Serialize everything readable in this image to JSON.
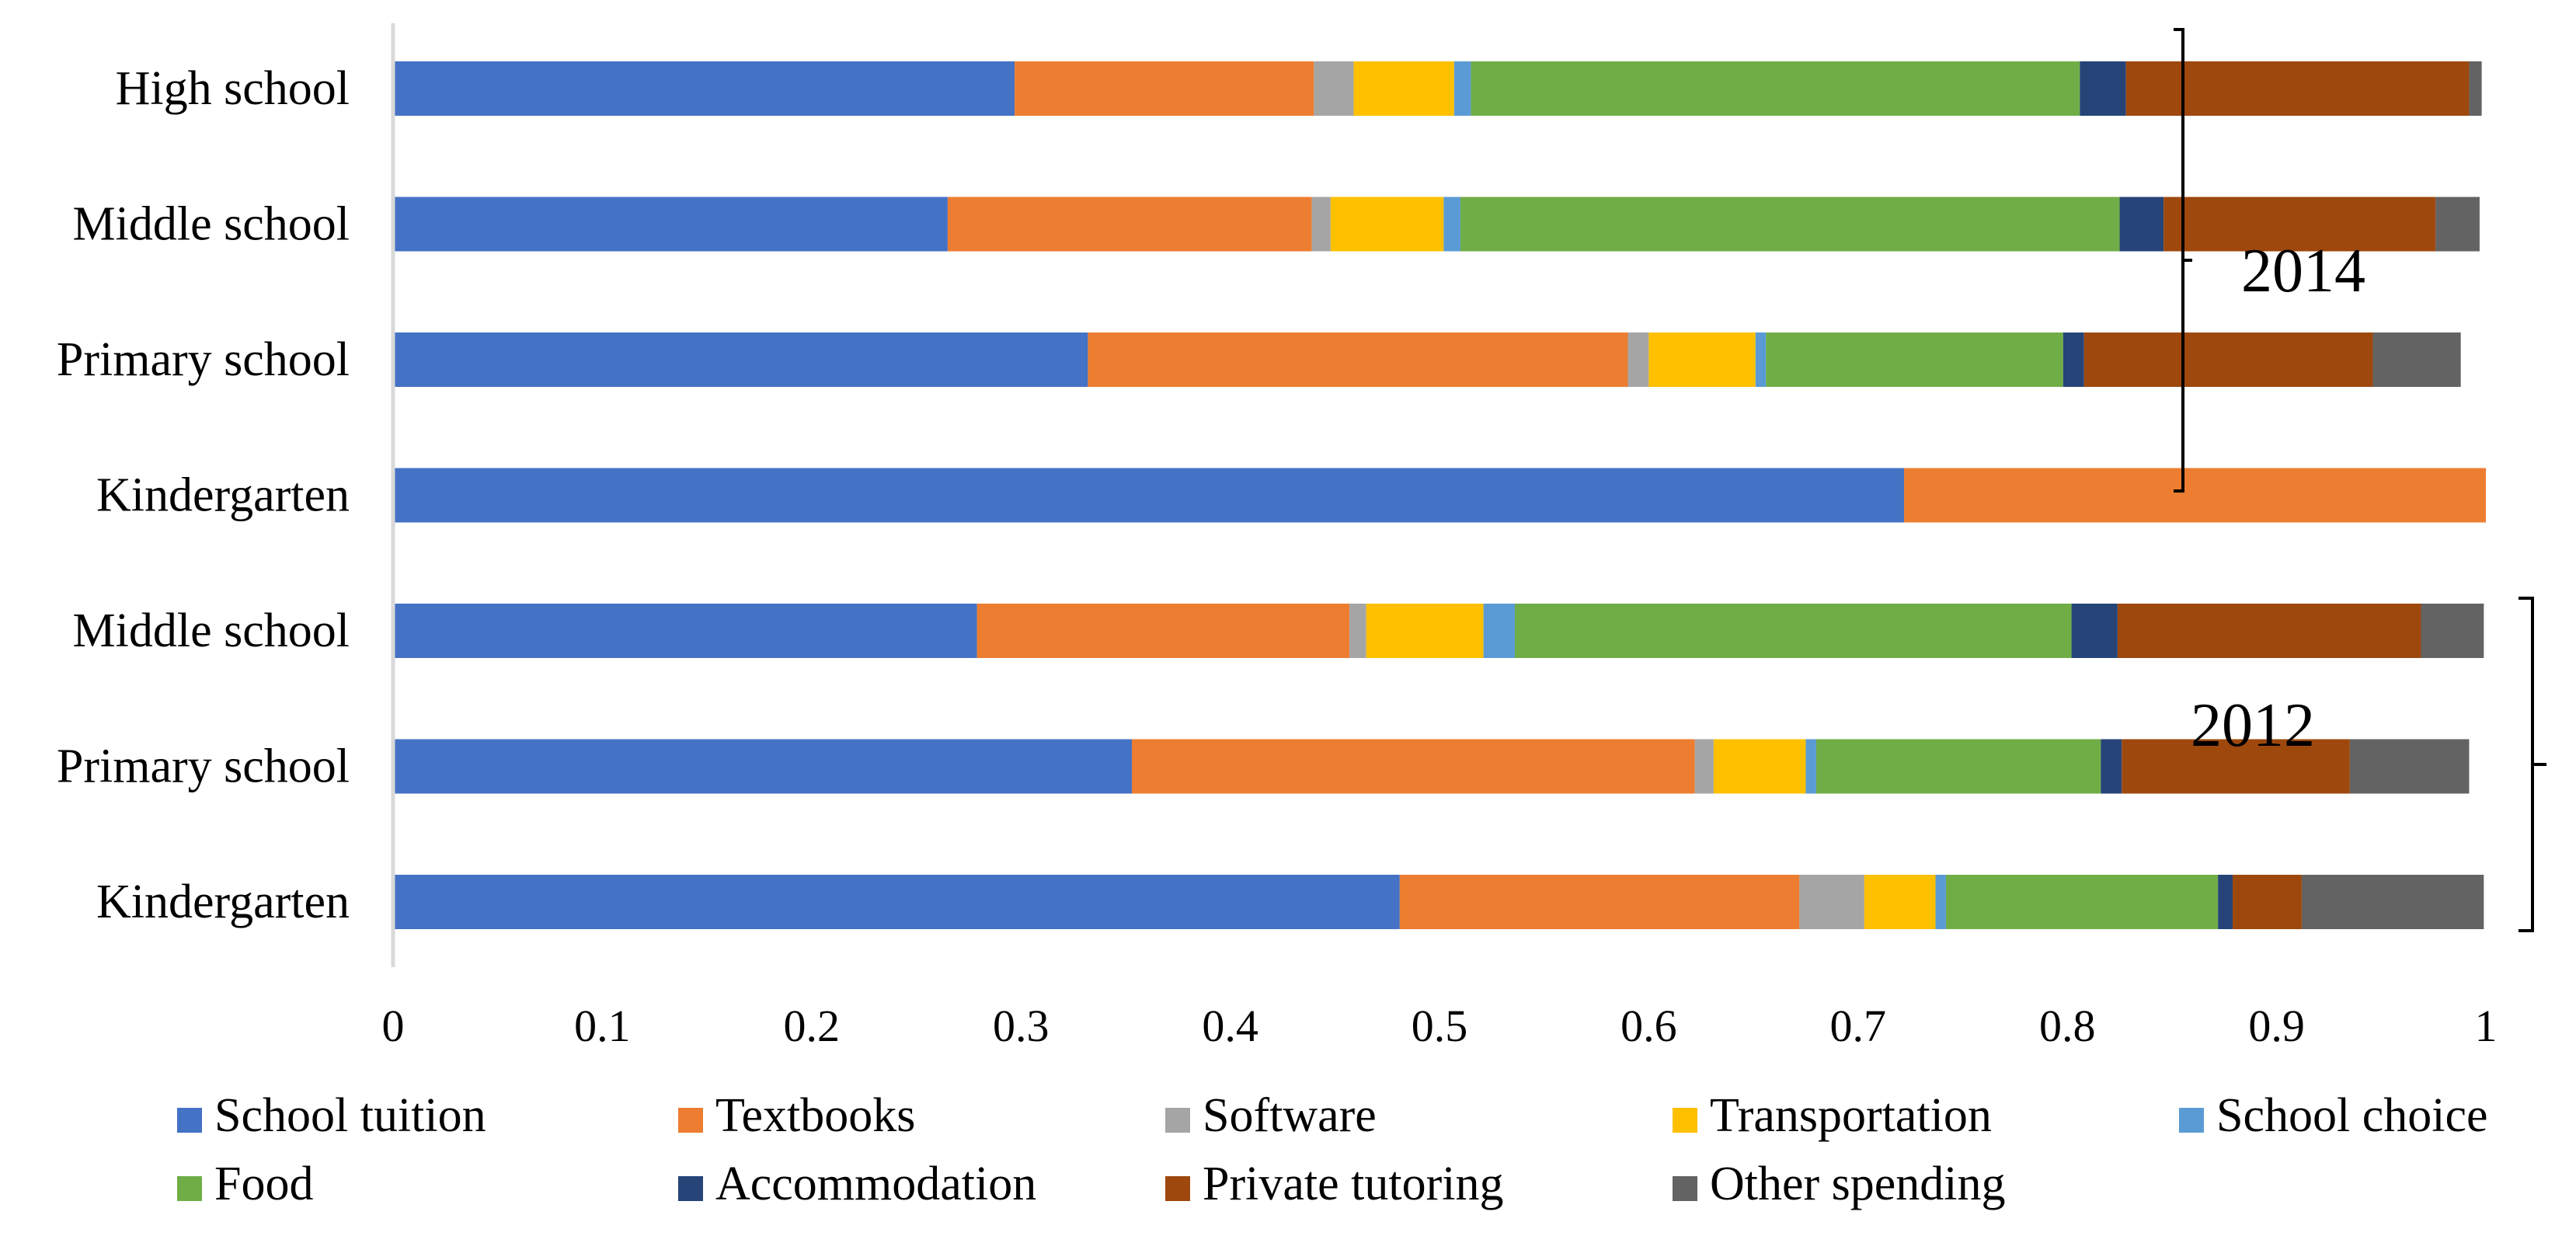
{
  "chart_data": {
    "type": "bar",
    "orientation": "horizontal",
    "stacked": true,
    "title": "",
    "xlabel": "",
    "ylabel": "",
    "xlim": [
      0,
      1
    ],
    "x_ticks": [
      "0",
      "0.1",
      "0.2",
      "0.3",
      "0.4",
      "0.5",
      "0.6",
      "0.7",
      "0.8",
      "0.9",
      "1"
    ],
    "grid": false,
    "legend_position": "bottom",
    "categories": [
      "High school",
      "Middle school",
      "Primary school",
      "Kindergarten",
      "Middle school",
      "Primary school",
      "Kindergarten"
    ],
    "groups": [
      {
        "label": "2014",
        "rows": [
          0,
          1,
          2,
          3
        ]
      },
      {
        "label": "2012",
        "rows": [
          4,
          5,
          6
        ]
      }
    ],
    "series": [
      {
        "name": "School tuition",
        "color": "#4472C4",
        "values": [
          0.297,
          0.265,
          0.332,
          0.722,
          0.279,
          0.353,
          0.481
        ]
      },
      {
        "name": "Textbooks",
        "color": "#ED7D31",
        "values": [
          0.143,
          0.174,
          0.258,
          0.278,
          0.178,
          0.269,
          0.191
        ]
      },
      {
        "name": "Software",
        "color": "#A5A5A5",
        "values": [
          0.019,
          0.009,
          0.01,
          0.0,
          0.008,
          0.009,
          0.031
        ]
      },
      {
        "name": "Transportation",
        "color": "#FFC000",
        "values": [
          0.048,
          0.054,
          0.051,
          0.0,
          0.056,
          0.044,
          0.034
        ]
      },
      {
        "name": "School choice",
        "color": "#5B9BD5",
        "values": [
          0.008,
          0.008,
          0.005,
          0.0,
          0.015,
          0.005,
          0.005
        ]
      },
      {
        "name": "Food",
        "color": "#70AD47",
        "values": [
          0.291,
          0.315,
          0.142,
          0.0,
          0.266,
          0.136,
          0.13
        ]
      },
      {
        "name": "Accommodation",
        "color": "#264478",
        "values": [
          0.022,
          0.021,
          0.01,
          0.0,
          0.022,
          0.01,
          0.007
        ]
      },
      {
        "name": "Private tutoring",
        "color": "#9E480E",
        "values": [
          0.164,
          0.13,
          0.138,
          0.0,
          0.145,
          0.109,
          0.033
        ]
      },
      {
        "name": "Other spending",
        "color": "#636363",
        "values": [
          0.006,
          0.021,
          0.042,
          0.0,
          0.03,
          0.057,
          0.087
        ]
      }
    ]
  }
}
